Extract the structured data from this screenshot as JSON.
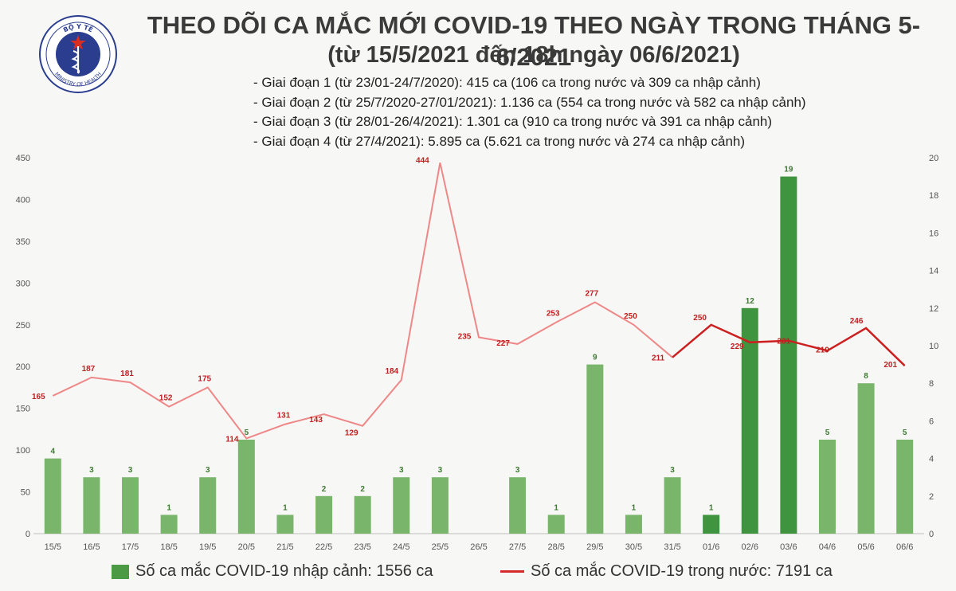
{
  "header": {
    "logo_text_top": "BỘ Y TẾ",
    "logo_text_bottom": "MINISTRY OF HEALTH",
    "title": "THEO DÕI CA MẮC MỚI COVID-19 THEO NGÀY TRONG THÁNG 5-6/2021",
    "subtitle": "(từ 15/5/2021 đến 18h ngày 06/6/2021)",
    "phases": [
      "- Giai đoạn 1 (từ 23/01-24/7/2020): 415 ca (106 ca trong nước và 309 ca nhập cảnh)",
      "- Giai đoạn 2 (từ 25/7/2020-27/01/2021): 1.136 ca (554 ca trong nước và 582 ca nhập cảnh)",
      "- Giai đoạn 3 (từ 28/01-26/4/2021): 1.301 ca (910 ca trong nước và 391 ca nhập cảnh)",
      "- Giai đoạn 4 (từ 27/4/2021): 5.895 ca (5.621 ca trong nước và 274 ca nhập cảnh)"
    ]
  },
  "legend": {
    "bar_label": "Số ca mắc COVID-19 nhập cảnh: 1556 ca",
    "line_label": "Số ca mắc COVID-19 trong nước: 7191 ca"
  },
  "chart_data": {
    "type": "bar",
    "categories": [
      "15/5",
      "16/5",
      "17/5",
      "18/5",
      "19/5",
      "20/5",
      "21/5",
      "22/5",
      "23/5",
      "24/5",
      "25/5",
      "26/5",
      "27/5",
      "28/5",
      "29/5",
      "30/5",
      "31/5",
      "01/6",
      "02/6",
      "03/6",
      "04/6",
      "05/6",
      "06/6"
    ],
    "left_axis": {
      "ylim": [
        0,
        450
      ],
      "ticks": [
        0,
        50,
        100,
        150,
        200,
        250,
        300,
        350,
        400,
        450
      ]
    },
    "right_axis": {
      "ylim": [
        0,
        20
      ],
      "ticks": [
        0,
        2,
        4,
        6,
        8,
        10,
        12,
        14,
        16,
        18,
        20
      ]
    },
    "series": [
      {
        "type": "bar",
        "axis": "right",
        "color": "#4d9a45",
        "values": [
          4,
          3,
          3,
          1,
          3,
          5,
          1,
          2,
          2,
          3,
          3,
          null,
          3,
          1,
          9,
          1,
          3,
          1,
          12,
          19,
          5,
          8,
          5
        ]
      },
      {
        "type": "line",
        "axis": "left",
        "color": "#d52a2a",
        "values": [
          165,
          187,
          181,
          152,
          175,
          114,
          131,
          143,
          129,
          184,
          444,
          235,
          227,
          253,
          277,
          250,
          211,
          250,
          229,
          231,
          219,
          246,
          201
        ]
      }
    ],
    "grid": false,
    "legend_position": "bottom"
  }
}
